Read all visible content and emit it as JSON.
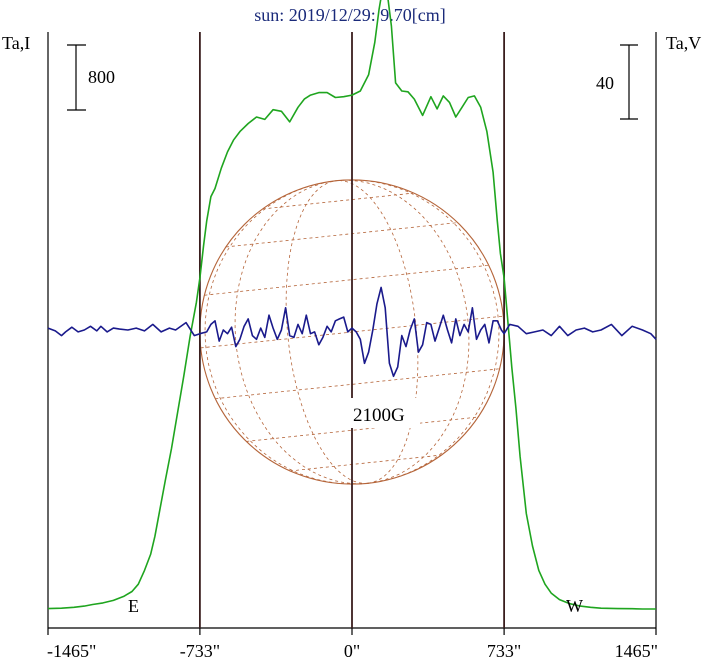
{
  "chart_data": {
    "type": "line",
    "title": "sun: 2019/12/29: 9.70[cm]",
    "left_axis_label": "Ta,I",
    "right_axis_label": "Ta,V",
    "left_scale_bar": {
      "label": "800",
      "value": 800
    },
    "right_scale_bar": {
      "label": "40",
      "value": 40
    },
    "field_label": "2100G",
    "limb_labels": {
      "east": "E",
      "west": "W"
    },
    "x_ticks": [
      {
        "value": -1465,
        "label": "-1465\""
      },
      {
        "value": -733,
        "label": "-733\""
      },
      {
        "value": 0,
        "label": "0\""
      },
      {
        "value": 733,
        "label": "733\""
      },
      {
        "value": 1465,
        "label": "1465\""
      }
    ],
    "xlim": [
      -1465,
      1465
    ],
    "vertical_lines": [
      -733,
      0,
      733
    ],
    "solar_disk_radius": 733,
    "colors": {
      "title": "#1a2a7a",
      "intensity": "#1fa51f",
      "polarization": "#1a1a8c",
      "disk": "#b5653a",
      "frame": "#3a1e1e"
    },
    "series": [
      {
        "name": "I",
        "x": [
          -1465,
          -1400,
          -1340,
          -1290,
          -1250,
          -1200,
          -1150,
          -1100,
          -1060,
          -1030,
          -1000,
          -970,
          -950,
          -930,
          -900,
          -870,
          -840,
          -810,
          -780,
          -750,
          -733,
          -715,
          -700,
          -680,
          -660,
          -630,
          -600,
          -570,
          -540,
          -500,
          -460,
          -420,
          -380,
          -340,
          -300,
          -260,
          -230,
          -200,
          -160,
          -120,
          -80,
          -40,
          0,
          40,
          80,
          110,
          130,
          150,
          170,
          190,
          210,
          240,
          270,
          300,
          340,
          380,
          410,
          440,
          470,
          500,
          530,
          560,
          590,
          620,
          650,
          680,
          700,
          715,
          733,
          750,
          770,
          790,
          810,
          840,
          870,
          900,
          930,
          960,
          1000,
          1050,
          1100,
          1150,
          1200,
          1280,
          1350,
          1400,
          1465
        ],
        "values": [
          30,
          35,
          45,
          60,
          80,
          100,
          130,
          180,
          240,
          330,
          500,
          700,
          920,
          1190,
          1600,
          2000,
          2450,
          2900,
          3380,
          3800,
          4100,
          4500,
          4800,
          5100,
          5200,
          5450,
          5650,
          5800,
          5900,
          6000,
          6080,
          6050,
          6170,
          6150,
          6020,
          6200,
          6300,
          6350,
          6380,
          6380,
          6320,
          6330,
          6350,
          6400,
          6600,
          7000,
          7400,
          7700,
          7600,
          7200,
          6500,
          6400,
          6390,
          6300,
          6100,
          6330,
          6180,
          6340,
          6260,
          6080,
          6200,
          6320,
          6340,
          6200,
          5900,
          5400,
          4800,
          4400,
          4100,
          3600,
          3000,
          2500,
          1900,
          1200,
          800,
          500,
          330,
          220,
          140,
          90,
          60,
          45,
          35,
          30,
          28,
          25,
          25
        ]
      },
      {
        "name": "V",
        "x": [
          -1465,
          -1430,
          -1400,
          -1380,
          -1350,
          -1320,
          -1290,
          -1260,
          -1230,
          -1210,
          -1180,
          -1150,
          -1120,
          -1080,
          -1040,
          -1000,
          -960,
          -920,
          -880,
          -850,
          -800,
          -760,
          -733,
          -700,
          -680,
          -660,
          -640,
          -620,
          -600,
          -580,
          -560,
          -540,
          -520,
          -500,
          -480,
          -460,
          -440,
          -420,
          -400,
          -380,
          -360,
          -340,
          -320,
          -300,
          -280,
          -260,
          -240,
          -220,
          -200,
          -180,
          -160,
          -140,
          -120,
          -100,
          -80,
          -60,
          -40,
          -20,
          0,
          20,
          40,
          60,
          80,
          100,
          120,
          140,
          160,
          180,
          200,
          220,
          240,
          260,
          280,
          300,
          320,
          340,
          360,
          380,
          400,
          420,
          440,
          460,
          480,
          500,
          520,
          540,
          560,
          580,
          600,
          620,
          640,
          660,
          680,
          700,
          720,
          733,
          760,
          800,
          840,
          880,
          920,
          960,
          1000,
          1040,
          1080,
          1120,
          1160,
          1200,
          1250,
          1300,
          1350,
          1400,
          1440,
          1465
        ],
        "values": [
          1,
          -0.5,
          -3,
          -1,
          1.5,
          -1,
          0,
          2,
          -0.5,
          2,
          -1,
          1,
          0.5,
          0,
          1,
          -0.5,
          3,
          -1,
          1,
          0,
          4,
          -3,
          -2,
          -1,
          3,
          5,
          -6,
          0,
          -2,
          1.5,
          -9,
          -5,
          2,
          6,
          -3,
          -5,
          1,
          -4,
          8,
          1,
          -5,
          0,
          12,
          -3,
          -4,
          3,
          -2,
          8,
          -2,
          -1,
          -8,
          -4,
          2,
          -1,
          5,
          6,
          7,
          -1,
          1,
          -1,
          -5,
          -18,
          -12,
          0,
          14,
          23,
          12,
          -18,
          -25,
          -20,
          -3,
          -9,
          0,
          6,
          -12,
          -8,
          4,
          3,
          -6,
          1,
          8,
          0,
          -7,
          6,
          -3,
          3,
          -1,
          12,
          -5,
          0,
          3,
          -7,
          5,
          5,
          0,
          -2,
          3,
          2,
          -2,
          -1,
          0,
          -3,
          2,
          -3,
          0,
          1,
          -1,
          0,
          3,
          -3,
          2,
          0,
          -2,
          -5
        ]
      }
    ]
  }
}
